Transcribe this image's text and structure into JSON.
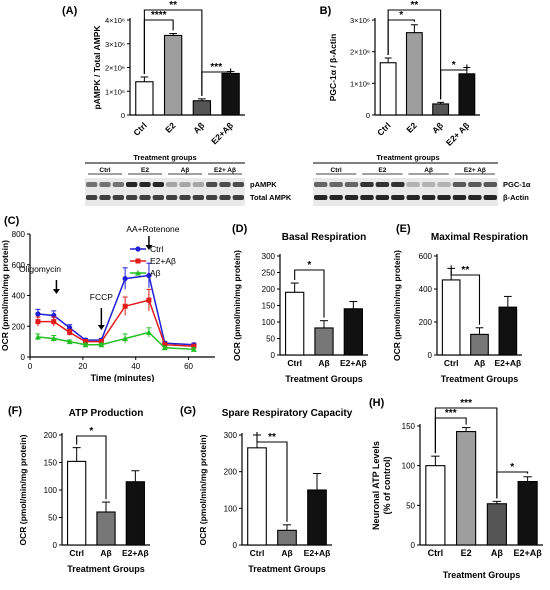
{
  "chart_data": [
    {
      "id": "A",
      "panel_label": "(A)",
      "type": "bar",
      "ylabel": "pAMPK / Total AMPK",
      "categories": [
        "Ctrl",
        "E2",
        "Aβ",
        "E2+Aβ"
      ],
      "values": [
        1400000,
        3350000,
        600000,
        1750000
      ],
      "errors": [
        200000,
        80000,
        80000,
        80000
      ],
      "colors": [
        "#ffffff",
        "#9e9e9e",
        "#555555",
        "#111111"
      ],
      "ylim": [
        0,
        4000000
      ],
      "yticks": [
        0,
        1000000,
        2000000,
        3000000,
        4000000
      ],
      "ytick_labels": [
        "0",
        "1×10⁶",
        "2×10⁶",
        "3×10⁶",
        "4×10⁶"
      ],
      "significance": [
        {
          "from": 0,
          "to": 1,
          "label": "****"
        },
        {
          "from": 0,
          "to": 2,
          "label": "**"
        },
        {
          "from": 2,
          "to": 3,
          "label": "***"
        }
      ]
    },
    {
      "id": "B",
      "panel_label": "(B)",
      "type": "bar",
      "ylabel": "PGC-1α / β-Actin",
      "categories": [
        "Ctrl",
        "E2",
        "Aβ",
        "E2+ Aβ"
      ],
      "values": [
        1650000,
        2600000,
        350000,
        1300000
      ],
      "errors": [
        150000,
        250000,
        50000,
        200000
      ],
      "colors": [
        "#ffffff",
        "#9e9e9e",
        "#555555",
        "#111111"
      ],
      "ylim": [
        0,
        3000000
      ],
      "yticks": [
        0,
        1000000,
        2000000,
        3000000
      ],
      "ytick_labels": [
        "0",
        "1×10⁶",
        "2×10⁶",
        "3×10⁶"
      ],
      "significance": [
        {
          "from": 0,
          "to": 1,
          "label": "*"
        },
        {
          "from": 0,
          "to": 2,
          "label": "**"
        },
        {
          "from": 2,
          "to": 3,
          "label": "*"
        }
      ]
    },
    {
      "id": "C",
      "panel_label": "(C)",
      "type": "line",
      "xlabel": "Time (minutes)",
      "ylabel": "OCR (pmol/min/mg protein)",
      "xlim": [
        0,
        70
      ],
      "ylim": [
        0,
        800
      ],
      "xticks": [
        0,
        20,
        40,
        60
      ],
      "yticks": [
        0,
        200,
        400,
        600,
        800
      ],
      "x": [
        3,
        9,
        15,
        21,
        27,
        36,
        45,
        51,
        62
      ],
      "series": [
        {
          "name": "Ctrl",
          "color": "#1f1fd6",
          "marker": "circle",
          "values": [
            280,
            270,
            190,
            110,
            110,
            510,
            530,
            90,
            80
          ],
          "errors": [
            30,
            30,
            20,
            10,
            10,
            70,
            80,
            10,
            10
          ]
        },
        {
          "name": "E2+Aβ",
          "color": "#e11a1a",
          "marker": "square",
          "values": [
            230,
            230,
            160,
            100,
            100,
            330,
            370,
            80,
            70
          ],
          "errors": [
            30,
            30,
            20,
            10,
            10,
            60,
            70,
            10,
            10
          ]
        },
        {
          "name": "Aβ",
          "color": "#22c022",
          "marker": "triangle",
          "values": [
            130,
            120,
            100,
            80,
            80,
            120,
            160,
            60,
            50
          ],
          "errors": [
            20,
            20,
            10,
            10,
            10,
            30,
            30,
            10,
            10
          ]
        }
      ],
      "annotations": [
        {
          "text": "Oligomycin",
          "x": 10
        },
        {
          "text": "FCCP",
          "x": 27
        },
        {
          "text": "AA+Rotenone",
          "x": 45
        }
      ]
    },
    {
      "id": "D",
      "panel_label": "(D)",
      "type": "bar",
      "title": "Basal Respiration",
      "xlabel": "Treatment Groups",
      "ylabel": "OCR (pmol/min/mg protein)",
      "categories": [
        "Ctrl",
        "Aβ",
        "E2+Aβ"
      ],
      "values": [
        190,
        82,
        140
      ],
      "errors": [
        28,
        22,
        22
      ],
      "colors": [
        "#ffffff",
        "#777777",
        "#111111"
      ],
      "ylim": [
        0,
        300
      ],
      "yticks": [
        0,
        50,
        100,
        150,
        200,
        250,
        300
      ],
      "significance": [
        {
          "from": 0,
          "to": 1,
          "label": "*"
        }
      ]
    },
    {
      "id": "E",
      "panel_label": "(E)",
      "type": "bar",
      "title": "Maximal Respiration",
      "xlabel": "Treatment Groups",
      "ylabel": "OCR (pmol/min/mg protein)",
      "categories": [
        "Ctrl",
        "Aβ",
        "E2+Aβ"
      ],
      "values": [
        455,
        125,
        290
      ],
      "errors": [
        70,
        40,
        65
      ],
      "colors": [
        "#ffffff",
        "#777777",
        "#111111"
      ],
      "ylim": [
        0,
        600
      ],
      "yticks": [
        0,
        200,
        400,
        600
      ],
      "significance": [
        {
          "from": 0,
          "to": 1,
          "label": "**"
        }
      ]
    },
    {
      "id": "F",
      "panel_label": "(F)",
      "type": "bar",
      "title": "ATP Production",
      "xlabel": "Treatment Groups",
      "ylabel": "OCR (pmol/min/mg protein)",
      "categories": [
        "Ctrl",
        "Aβ",
        "E2+Aβ"
      ],
      "values": [
        152,
        60,
        115
      ],
      "errors": [
        25,
        18,
        20
      ],
      "colors": [
        "#ffffff",
        "#777777",
        "#111111"
      ],
      "ylim": [
        0,
        200
      ],
      "yticks": [
        0,
        50,
        100,
        150,
        200
      ],
      "significance": [
        {
          "from": 0,
          "to": 1,
          "label": "*"
        }
      ]
    },
    {
      "id": "G",
      "panel_label": "(G)",
      "type": "bar",
      "title": "Spare Respiratory Capacity",
      "xlabel": "Treatment Groups",
      "ylabel": "OCR (pmol/min/mg protein)",
      "categories": [
        "Ctrl",
        "Aβ",
        "E2+Aβ"
      ],
      "values": [
        265,
        40,
        150
      ],
      "errors": [
        35,
        15,
        45
      ],
      "colors": [
        "#ffffff",
        "#777777",
        "#111111"
      ],
      "ylim": [
        0,
        300
      ],
      "yticks": [
        0,
        100,
        200,
        300
      ],
      "significance": [
        {
          "from": 0,
          "to": 1,
          "label": "**"
        }
      ]
    },
    {
      "id": "H",
      "panel_label": "(H)",
      "type": "bar",
      "xlabel": "Treatment Groups",
      "ylabel": "Neuronal ATP Levels (% of control)",
      "ylabel_lines": [
        "Neuronal ATP Levels",
        "(% of control)"
      ],
      "categories": [
        "Ctrl",
        "E2",
        "Aβ",
        "E2+Aβ"
      ],
      "values": [
        100,
        143,
        52,
        80
      ],
      "errors": [
        12,
        5,
        3,
        6
      ],
      "colors": [
        "#ffffff",
        "#9e9e9e",
        "#555555",
        "#111111"
      ],
      "ylim": [
        0,
        150
      ],
      "yticks": [
        0,
        50,
        100,
        150
      ],
      "significance": [
        {
          "from": 0,
          "to": 1,
          "label": "***"
        },
        {
          "from": 0,
          "to": 2,
          "label": "***"
        },
        {
          "from": 2,
          "to": 3,
          "label": "*"
        }
      ]
    }
  ],
  "blots": {
    "A": {
      "title": "Treatment groups",
      "groups": [
        "Ctrl",
        "E2",
        "Aβ",
        "E2+ Aβ"
      ],
      "bands": [
        "pAMPK",
        "Total AMPK"
      ]
    },
    "B": {
      "title": "Treatment groups",
      "groups": [
        "Ctrl",
        "E2",
        "Aβ",
        "E2+ Aβ"
      ],
      "bands": [
        "PGC-1α",
        "β-Actin"
      ]
    }
  }
}
